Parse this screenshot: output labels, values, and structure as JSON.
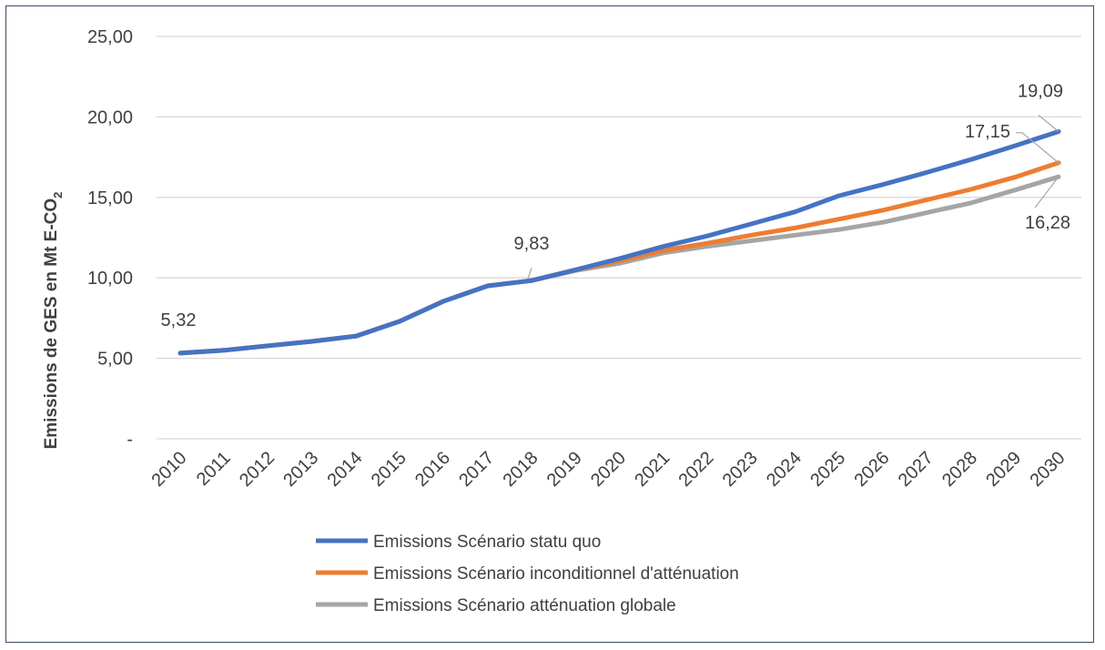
{
  "chart_data": {
    "type": "line",
    "title": "",
    "xlabel": "",
    "ylabel": "Emissions  de GES en Mt E-CO",
    "ylabel_subscript": "2",
    "ylim": [
      0,
      25
    ],
    "yticks": [
      0,
      5,
      10,
      15,
      20,
      25
    ],
    "ytick_labels": [
      "-",
      "5,00",
      "10,00",
      "15,00",
      "20,00",
      "25,00"
    ],
    "grid": true,
    "legend_position": "bottom",
    "categories": [
      "2010",
      "2011",
      "2012",
      "2013",
      "2014",
      "2015",
      "2016",
      "2017",
      "2018",
      "2019",
      "2020",
      "2021",
      "2022",
      "2023",
      "2024",
      "2025",
      "2026",
      "2027",
      "2028",
      "2029",
      "2030"
    ],
    "series": [
      {
        "name": "Emissions Scénario statu quo",
        "color": "#4472c4",
        "values": [
          5.32,
          5.5,
          5.78,
          6.05,
          6.38,
          7.3,
          8.55,
          9.5,
          9.83,
          10.5,
          11.2,
          11.95,
          12.6,
          13.35,
          14.1,
          15.1,
          15.8,
          16.55,
          17.35,
          18.2,
          19.09
        ]
      },
      {
        "name": "Emissions Scénario inconditionnel d'atténuation",
        "color": "#ed7d31",
        "values": [
          5.32,
          5.5,
          5.78,
          6.05,
          6.38,
          7.3,
          8.55,
          9.5,
          9.83,
          10.5,
          11.05,
          11.7,
          12.15,
          12.65,
          13.1,
          13.65,
          14.2,
          14.85,
          15.5,
          16.25,
          17.15
        ]
      },
      {
        "name": "Emissions Scénario atténuation globale",
        "color": "#a5a5a5",
        "values": [
          5.32,
          5.5,
          5.78,
          6.05,
          6.38,
          7.3,
          8.55,
          9.5,
          9.83,
          10.45,
          10.9,
          11.55,
          11.95,
          12.3,
          12.65,
          13.0,
          13.45,
          14.05,
          14.65,
          15.45,
          16.28
        ]
      }
    ],
    "annotations": [
      {
        "label": "5,32",
        "category": "2010",
        "series": 0
      },
      {
        "label": "9,83",
        "category": "2018",
        "series": 0
      },
      {
        "label": "19,09",
        "category": "2030",
        "series": 0
      },
      {
        "label": "17,15",
        "category": "2030",
        "series": 1
      },
      {
        "label": "16,28",
        "category": "2030",
        "series": 2
      }
    ]
  }
}
